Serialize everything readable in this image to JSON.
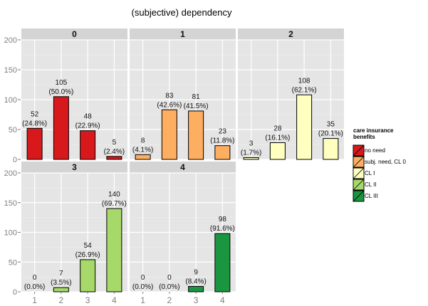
{
  "chart_data": {
    "type": "bar",
    "title": "(subjective) dependency",
    "facet_labels": [
      "0",
      "1",
      "2",
      "3",
      "4"
    ],
    "categories": [
      "1",
      "2",
      "3",
      "4"
    ],
    "yticks": [
      0,
      50,
      100,
      150,
      200
    ],
    "ylim": [
      0,
      200
    ],
    "grid": true,
    "legend": {
      "position": "right",
      "title_lines": [
        "care insurance",
        "benefits"
      ],
      "entries": [
        {
          "label": "no need",
          "color": "#d7191c"
        },
        {
          "label": "subj. need, CL 0",
          "color": "#fdae61"
        },
        {
          "label": "CL I",
          "color": "#ffffbf"
        },
        {
          "label": "CL II",
          "color": "#a6d96a"
        },
        {
          "label": "CL III",
          "color": "#1a9641"
        }
      ]
    },
    "series": [
      {
        "facet": "0",
        "values": [
          52,
          105,
          48,
          5
        ],
        "labels": [
          [
            "52",
            "(24.8%)"
          ],
          [
            "105",
            "(50.0%)"
          ],
          [
            "48",
            "(22.9%)"
          ],
          [
            "5",
            "(2.4%)"
          ]
        ]
      },
      {
        "facet": "1",
        "values": [
          8,
          83,
          81,
          23
        ],
        "labels": [
          [
            "8",
            "(4.1%)"
          ],
          [
            "83",
            "(42.6%)"
          ],
          [
            "81",
            "(41.5%)"
          ],
          [
            "23",
            "(11.8%)"
          ]
        ]
      },
      {
        "facet": "2",
        "values": [
          3,
          28,
          108,
          35
        ],
        "labels": [
          [
            "3",
            "(1.7%)"
          ],
          [
            "28",
            "(16.1%)"
          ],
          [
            "108",
            "(62.1%)"
          ],
          [
            "35",
            "(20.1%)"
          ]
        ]
      },
      {
        "facet": "3",
        "values": [
          0,
          7,
          54,
          140
        ],
        "labels": [
          [
            "0",
            "(0.0%)"
          ],
          [
            "7",
            "(3.5%)"
          ],
          [
            "54",
            "(26.9%)"
          ],
          [
            "140",
            "(69.7%)"
          ]
        ]
      },
      {
        "facet": "4",
        "values": [
          0,
          0,
          9,
          98
        ],
        "labels": [
          [
            "0",
            "(0.0%)"
          ],
          [
            "0",
            "(0.0%)"
          ],
          [
            "9",
            "(8.4%)"
          ],
          [
            "98",
            "(91.6%)"
          ]
        ]
      }
    ]
  }
}
